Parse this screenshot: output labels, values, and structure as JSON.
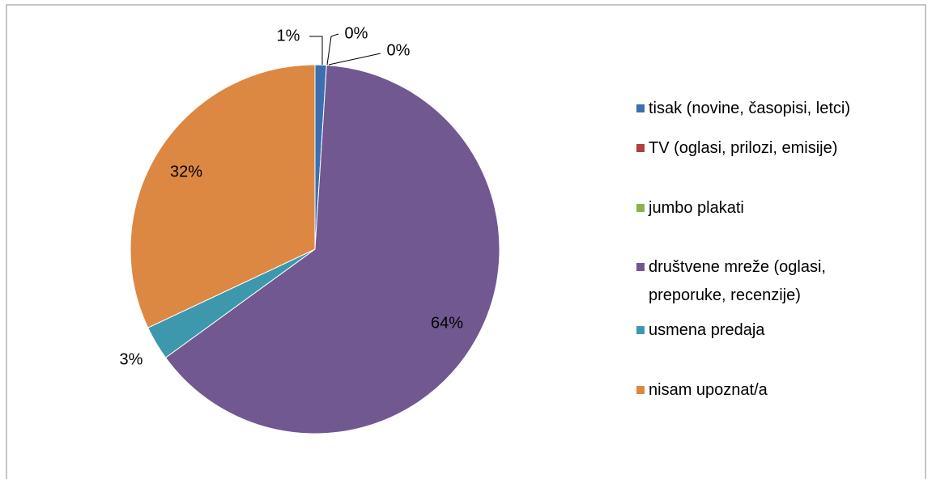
{
  "chart_data": {
    "type": "pie",
    "categories": [
      "tisak (novine, časopisi, letci)",
      "TV (oglasi, prilozi, emisije)",
      "jumbo plakati",
      "društvene mreže (oglasi, preporuke, recenzije)",
      "usmena predaja",
      "nisam upoznat/a"
    ],
    "values": [
      1,
      0,
      0,
      64,
      3,
      32
    ],
    "value_labels": [
      "1%",
      "0%",
      "0%",
      "64%",
      "3%",
      "32%"
    ],
    "colors": [
      "#3c6fb0",
      "#b0413e",
      "#8fb04f",
      "#715890",
      "#3d98ae",
      "#dc8843"
    ],
    "legend": "right"
  }
}
